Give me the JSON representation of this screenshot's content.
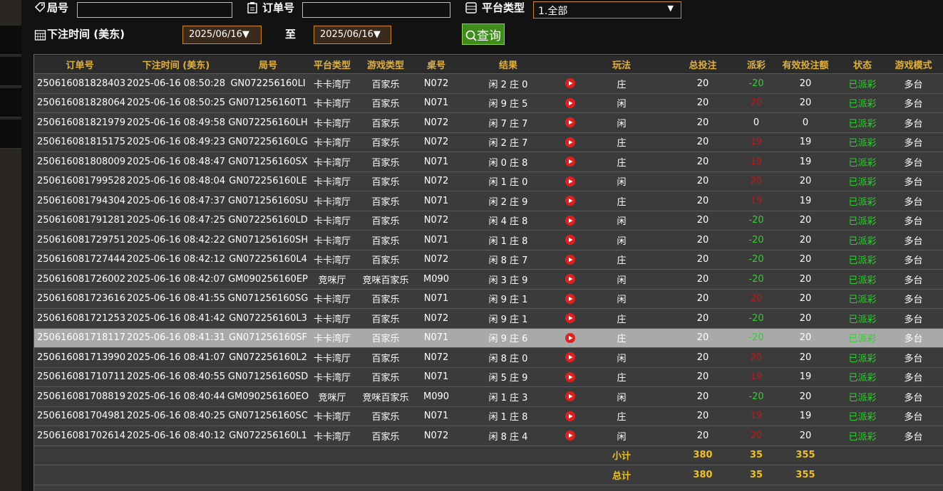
{
  "filters": {
    "round_label": "局号",
    "order_label": "订单号",
    "platform_label": "平台类型",
    "platform_value": "1.全部",
    "time_label": "下注时间 (美东)",
    "date_from": "2025/06/16▼",
    "to_label": "至",
    "date_to": "2025/06/16▼",
    "query_button": "查询"
  },
  "table": {
    "headers": [
      "订单号",
      "下注时间 (美东)",
      "局号",
      "平台类型",
      "游戏类型",
      "桌号",
      "结果",
      "玩法",
      "总投注",
      "派彩",
      "有效投注额",
      "状态",
      "游戏模式"
    ],
    "highlighted_row": 13,
    "rows": [
      [
        "250616081828403",
        "2025-06-16 08:50:28",
        "GN072256160LI",
        "卡卡湾厅",
        "百家乐",
        "N072",
        "闲 2 庄 0",
        "庄",
        20,
        -20,
        20,
        "已派彩",
        "多台"
      ],
      [
        "250616081828064",
        "2025-06-16 08:50:25",
        "GN071256160T1",
        "卡卡湾厅",
        "百家乐",
        "N071",
        "闲 9 庄 5",
        "闲",
        20,
        20,
        20,
        "已派彩",
        "多台"
      ],
      [
        "250616081821979",
        "2025-06-16 08:49:58",
        "GN072256160LH",
        "卡卡湾厅",
        "百家乐",
        "N072",
        "闲 7 庄 7",
        "闲",
        20,
        0,
        0,
        "已派彩",
        "多台"
      ],
      [
        "250616081815175",
        "2025-06-16 08:49:23",
        "GN072256160LG",
        "卡卡湾厅",
        "百家乐",
        "N072",
        "闲 2 庄 7",
        "庄",
        20,
        19,
        19,
        "已派彩",
        "多台"
      ],
      [
        "250616081808009",
        "2025-06-16 08:48:47",
        "GN071256160SX",
        "卡卡湾厅",
        "百家乐",
        "N071",
        "闲 0 庄 8",
        "庄",
        20,
        19,
        19,
        "已派彩",
        "多台"
      ],
      [
        "250616081799528",
        "2025-06-16 08:48:04",
        "GN072256160LE",
        "卡卡湾厅",
        "百家乐",
        "N072",
        "闲 1 庄 0",
        "闲",
        20,
        20,
        20,
        "已派彩",
        "多台"
      ],
      [
        "250616081794304",
        "2025-06-16 08:47:37",
        "GN071256160SU",
        "卡卡湾厅",
        "百家乐",
        "N071",
        "闲 2 庄 9",
        "庄",
        20,
        19,
        19,
        "已派彩",
        "多台"
      ],
      [
        "250616081791281",
        "2025-06-16 08:47:25",
        "GN072256160LD",
        "卡卡湾厅",
        "百家乐",
        "N072",
        "闲 4 庄 8",
        "闲",
        20,
        -20,
        20,
        "已派彩",
        "多台"
      ],
      [
        "250616081729751",
        "2025-06-16 08:42:22",
        "GN071256160SH",
        "卡卡湾厅",
        "百家乐",
        "N071",
        "闲 1 庄 8",
        "闲",
        20,
        -20,
        20,
        "已派彩",
        "多台"
      ],
      [
        "250616081727444",
        "2025-06-16 08:42:12",
        "GN072256160L4",
        "卡卡湾厅",
        "百家乐",
        "N072",
        "闲 8 庄 7",
        "庄",
        20,
        -20,
        20,
        "已派彩",
        "多台"
      ],
      [
        "250616081726002",
        "2025-06-16 08:42:07",
        "GM090256160EP",
        "竞咪厅",
        "竞咪百家乐",
        "M090",
        "闲 3 庄 9",
        "闲",
        20,
        -20,
        20,
        "已派彩",
        "多台"
      ],
      [
        "250616081723616",
        "2025-06-16 08:41:55",
        "GN071256160SG",
        "卡卡湾厅",
        "百家乐",
        "N071",
        "闲 9 庄 1",
        "闲",
        20,
        20,
        20,
        "已派彩",
        "多台"
      ],
      [
        "250616081721253",
        "2025-06-16 08:41:42",
        "GN072256160L3",
        "卡卡湾厅",
        "百家乐",
        "N072",
        "闲 9 庄 1",
        "庄",
        20,
        -20,
        20,
        "已派彩",
        "多台"
      ],
      [
        "250616081718117",
        "2025-06-16 08:41:31",
        "GN071256160SF",
        "卡卡湾厅",
        "百家乐",
        "N071",
        "闲 9 庄 6",
        "庄",
        20,
        -20,
        20,
        "已派彩",
        "多台"
      ],
      [
        "250616081713990",
        "2025-06-16 08:41:07",
        "GN072256160L2",
        "卡卡湾厅",
        "百家乐",
        "N072",
        "闲 8 庄 0",
        "闲",
        20,
        20,
        20,
        "已派彩",
        "多台"
      ],
      [
        "250616081710711",
        "2025-06-16 08:40:55",
        "GN071256160SD",
        "卡卡湾厅",
        "百家乐",
        "N071",
        "闲 5 庄 9",
        "庄",
        20,
        19,
        19,
        "已派彩",
        "多台"
      ],
      [
        "250616081708819",
        "2025-06-16 08:40:44",
        "GM090256160EO",
        "竞咪厅",
        "竞咪百家乐",
        "M090",
        "闲 1 庄 3",
        "闲",
        20,
        -20,
        20,
        "已派彩",
        "多台"
      ],
      [
        "250616081704981",
        "2025-06-16 08:40:25",
        "GN071256160SC",
        "卡卡湾厅",
        "百家乐",
        "N071",
        "闲 1 庄 8",
        "庄",
        20,
        19,
        19,
        "已派彩",
        "多台"
      ],
      [
        "250616081702614",
        "2025-06-16 08:40:12",
        "GN072256160L1",
        "卡卡湾厅",
        "百家乐",
        "N072",
        "闲 8 庄 4",
        "闲",
        20,
        20,
        20,
        "已派彩",
        "多台"
      ]
    ],
    "subtotal": {
      "label": "小计",
      "bet": 380,
      "payout": 35,
      "valid": 355
    },
    "total": {
      "label": "总计",
      "bet": 380,
      "payout": 35,
      "valid": 355
    }
  }
}
